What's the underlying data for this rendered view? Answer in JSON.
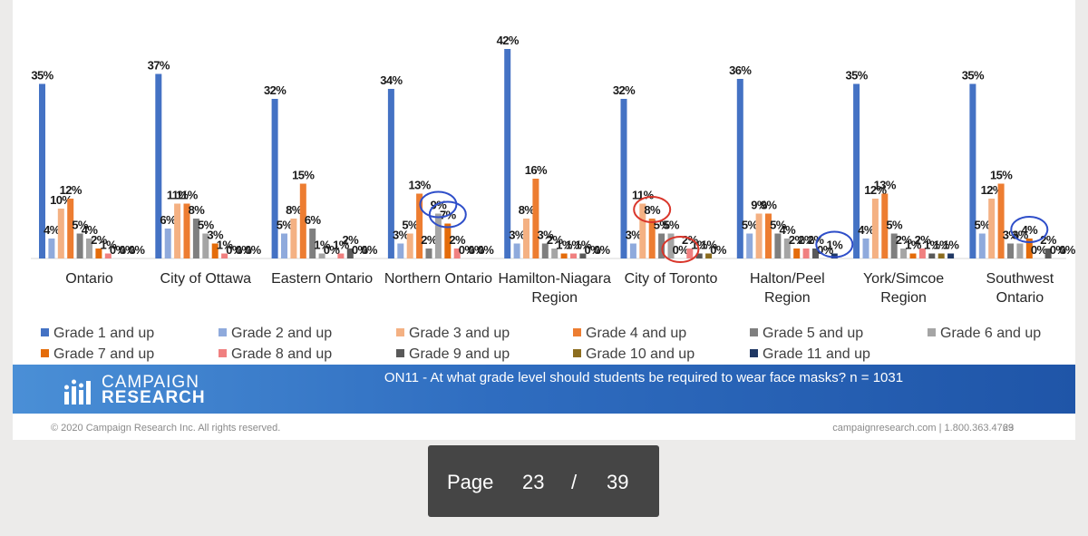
{
  "chart_data": {
    "type": "bar",
    "title": "",
    "xlabel": "",
    "ylabel": "",
    "ylim": [
      0,
      45
    ],
    "grid": false,
    "legend_position": "bottom",
    "categories": [
      "Ontario",
      "City of Ottawa",
      "Eastern Ontario",
      "Northern Ontario",
      "Hamilton-Niagara Region",
      "City of Toronto",
      "Halton/Peel Region",
      "York/Simcoe Region",
      "Southwest Ontario"
    ],
    "category_lines": [
      [
        "Ontario"
      ],
      [
        "City of Ottawa"
      ],
      [
        "Eastern Ontario"
      ],
      [
        "Northern Ontario"
      ],
      [
        "Hamilton-Niagara",
        "Region"
      ],
      [
        "City of Toronto"
      ],
      [
        "Halton/Peel",
        "Region"
      ],
      [
        "York/Simcoe",
        "Region"
      ],
      [
        "Southwest",
        "Ontario"
      ]
    ],
    "series": [
      {
        "name": "Grade 1 and up",
        "color": "#4472c4",
        "values": [
          35,
          37,
          32,
          34,
          42,
          32,
          36,
          35,
          35
        ]
      },
      {
        "name": "Grade 2 and up",
        "color": "#8faadc",
        "values": [
          4,
          6,
          5,
          3,
          3,
          3,
          5,
          4,
          5
        ]
      },
      {
        "name": "Grade 3 and up",
        "color": "#f4b183",
        "values": [
          10,
          11,
          8,
          5,
          8,
          11,
          9,
          12,
          12
        ]
      },
      {
        "name": "Grade 4 and up",
        "color": "#ed7d31",
        "values": [
          12,
          11,
          15,
          13,
          16,
          8,
          9,
          13,
          15
        ]
      },
      {
        "name": "Grade 5 and up",
        "color": "#7f7f7f",
        "values": [
          5,
          8,
          6,
          2,
          3,
          5,
          5,
          5,
          3
        ]
      },
      {
        "name": "Grade 6 and up",
        "color": "#a5a5a5",
        "values": [
          4,
          5,
          1,
          9,
          2,
          5,
          4,
          2,
          3
        ]
      },
      {
        "name": "Grade 7 and up",
        "color": "#e46c0a",
        "values": [
          2,
          3,
          0,
          7,
          1,
          0,
          2,
          1,
          4
        ]
      },
      {
        "name": "Grade 8 and up",
        "color": "#f08080",
        "values": [
          1,
          1,
          1,
          2,
          1,
          2,
          2,
          2,
          0
        ]
      },
      {
        "name": "Grade 9 and up",
        "color": "#595959",
        "values": [
          0,
          0,
          2,
          0,
          1,
          1,
          2,
          1,
          2
        ]
      },
      {
        "name": "Grade 10 and up",
        "color": "#8c6d1f",
        "values": [
          0,
          0,
          0,
          0,
          0,
          1,
          0,
          1,
          0
        ]
      },
      {
        "name": "Grade 11 and up",
        "color": "#203864",
        "values": [
          0,
          0,
          0,
          0,
          0,
          0,
          1,
          1,
          0
        ]
      }
    ],
    "annotations": [
      {
        "group": 3,
        "series": 5,
        "color": "#2e4ec9"
      },
      {
        "group": 3,
        "series": 6,
        "color": "#2e4ec9"
      },
      {
        "group": 5,
        "series": 3,
        "color": "#d9362b"
      },
      {
        "group": 5,
        "series": 6,
        "color": "#d9362b"
      },
      {
        "group": 6,
        "series": 10,
        "color": "#2e4ec9"
      },
      {
        "group": 8,
        "series": 6,
        "color": "#2e4ec9"
      }
    ]
  },
  "footer": {
    "brand_line1": "CAMPAIGN",
    "brand_line2": "RESEARCH",
    "question": "ON11 - At what grade level should students be required to wear face masks? n = 1031",
    "copyright": "© 2020 Campaign Research Inc. All rights reserved.",
    "contact": "campaignresearch.com | 1.800.363.4769",
    "slide_number": "23"
  },
  "pager": {
    "label": "Page",
    "current": "23",
    "separator": "/",
    "total": "39"
  }
}
